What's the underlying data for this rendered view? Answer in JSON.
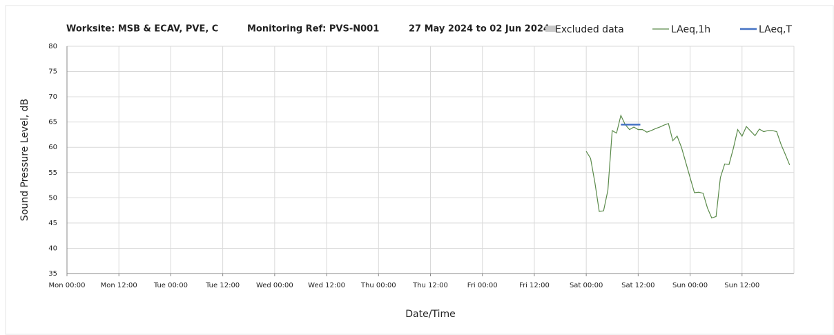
{
  "chart_data": {
    "type": "line",
    "title_parts": [
      "Worksite: MSB & ECAV, PVE, C",
      "Monitoring Ref: PVS-N001",
      "27 May 2024 to 02 Jun 2024"
    ],
    "x_label": "Date/Time",
    "y_label": "Sound Pressure Level, dB",
    "xlim": [
      0,
      168
    ],
    "xticks": [
      {
        "value": 0,
        "label": "Mon 00:00"
      },
      {
        "value": 12,
        "label": "Mon 12:00"
      },
      {
        "value": 24,
        "label": "Tue 00:00"
      },
      {
        "value": 36,
        "label": "Tue 12:00"
      },
      {
        "value": 48,
        "label": "Wed 00:00"
      },
      {
        "value": 60,
        "label": "Wed 12:00"
      },
      {
        "value": 72,
        "label": "Thu 00:00"
      },
      {
        "value": 84,
        "label": "Thu 12:00"
      },
      {
        "value": 96,
        "label": "Fri 00:00"
      },
      {
        "value": 108,
        "label": "Fri 12:00"
      },
      {
        "value": 120,
        "label": "Sat 00:00"
      },
      {
        "value": 132,
        "label": "Sat 12:00"
      },
      {
        "value": 144,
        "label": "Sun 00:00"
      },
      {
        "value": 156,
        "label": "Sun 12:00"
      }
    ],
    "ylim": [
      35,
      80
    ],
    "yticks": [
      35,
      40,
      45,
      50,
      55,
      60,
      65,
      70,
      75,
      80
    ],
    "grid": true,
    "legend": "top-right",
    "series": [
      {
        "name": "Excluded data",
        "color": "#c8c8c8",
        "x": [],
        "values": []
      },
      {
        "name": "LAeq,1h",
        "color": "#5a8a4a",
        "x": [
          120,
          121,
          122,
          123,
          124,
          125,
          126,
          127,
          128,
          129,
          130,
          131,
          132,
          133,
          134,
          135,
          136,
          137,
          138,
          139,
          140,
          141,
          142,
          143,
          144,
          145,
          146,
          147,
          148,
          149,
          150,
          151,
          152,
          153,
          154,
          155,
          156,
          157,
          158,
          159,
          160,
          161,
          162,
          163,
          164,
          165,
          166,
          167
        ],
        "values": [
          59.2,
          57.8,
          53,
          47.3,
          47.4,
          51.5,
          63.3,
          62.8,
          66.3,
          64.5,
          63.5,
          64,
          63.5,
          63.5,
          63,
          63.3,
          63.7,
          64,
          64.4,
          64.7,
          61.3,
          62.2,
          60,
          57,
          54,
          51,
          51.1,
          50.9,
          48,
          46,
          46.3,
          54,
          56.7,
          56.6,
          59.8,
          63.5,
          62.2,
          64.1,
          63.2,
          62.3,
          63.6,
          63.1,
          63.3,
          63.3,
          63.1,
          60.6,
          58.6,
          56.5
        ]
      },
      {
        "name": "LAeq,T",
        "color": "#4472c4",
        "x": [
          128,
          132.5
        ],
        "values": [
          64.5,
          64.5
        ]
      }
    ]
  }
}
